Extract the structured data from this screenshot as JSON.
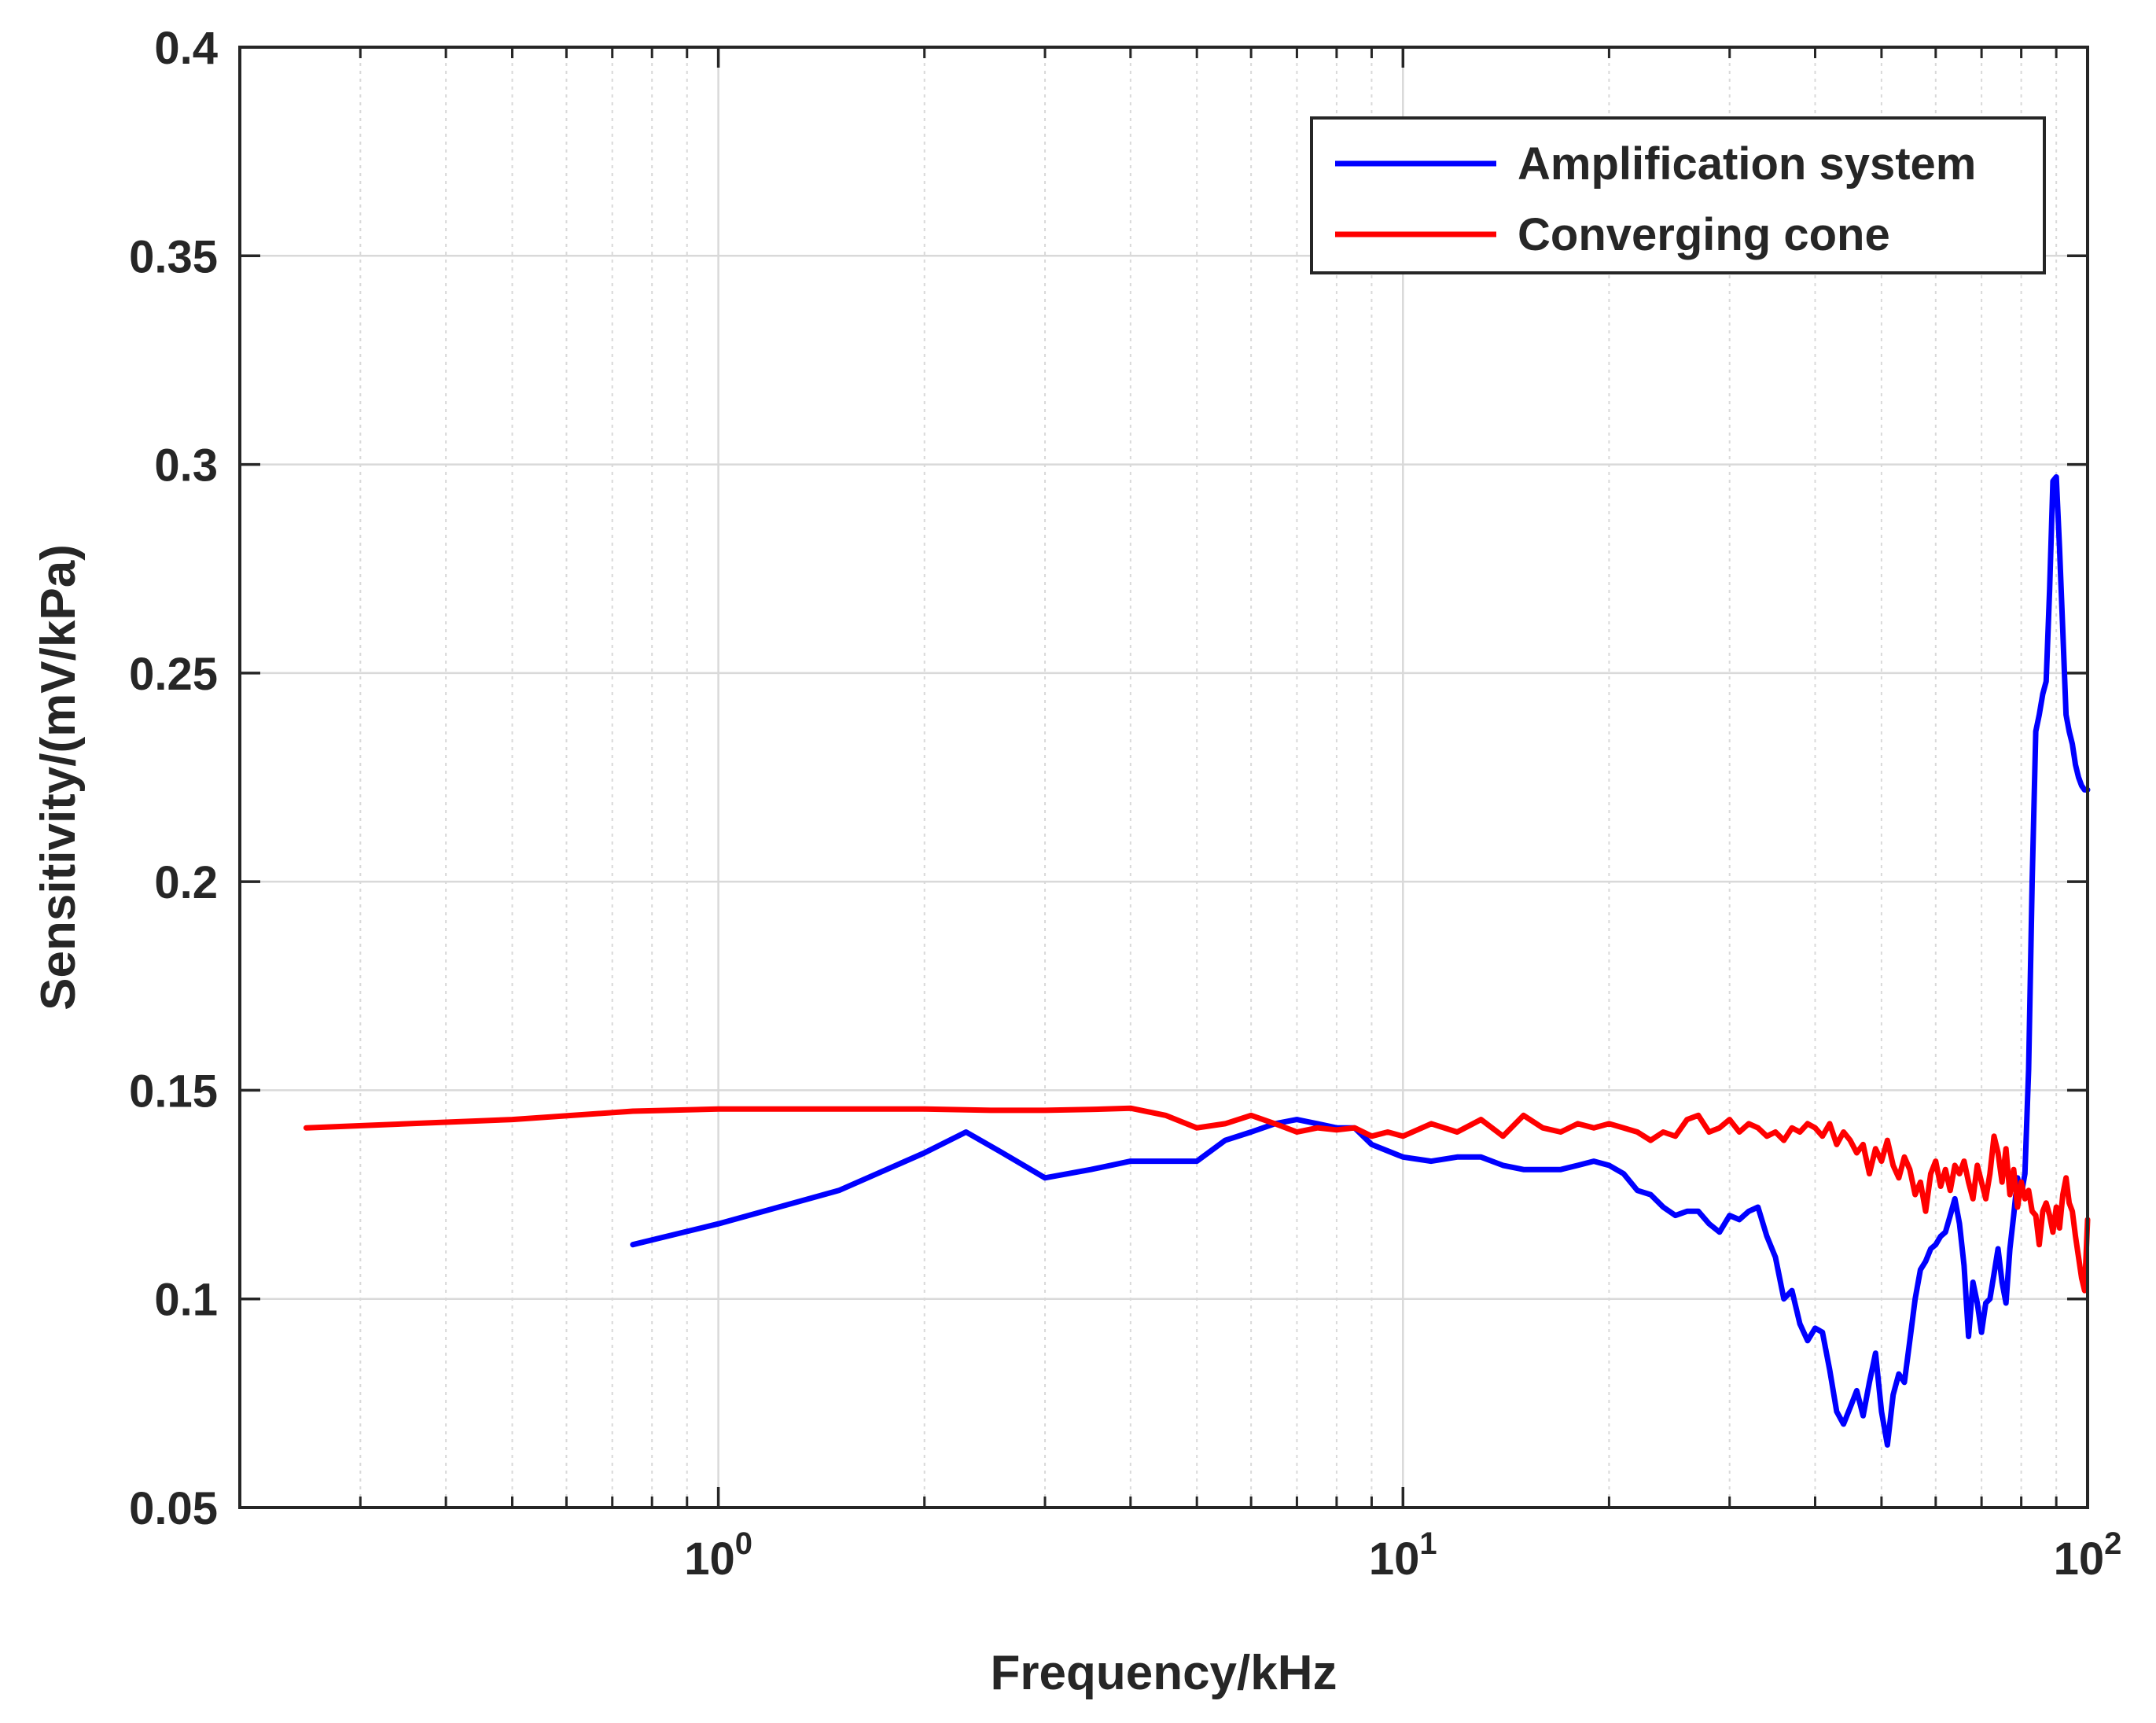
{
  "chart_data": {
    "type": "line",
    "title": "",
    "xlabel": "Frequency/kHz",
    "ylabel": "Sensitivity/(mV/kPa)",
    "x_scale": "log",
    "xlim": [
      0.2,
      100
    ],
    "ylim": [
      0.05,
      0.4
    ],
    "x_ticks": [
      {
        "value": 1,
        "base": "10",
        "exp": "0"
      },
      {
        "value": 10,
        "base": "10",
        "exp": "1"
      },
      {
        "value": 100,
        "base": "10",
        "exp": "2"
      }
    ],
    "y_ticks": [
      0.05,
      0.1,
      0.15,
      0.2,
      0.25,
      0.3,
      0.35,
      0.4
    ],
    "y_tick_labels": [
      "0.05",
      "0.1",
      "0.15",
      "0.2",
      "0.25",
      "0.3",
      "0.35",
      "0.4"
    ],
    "grid": true,
    "legend_position": "top-right",
    "series": [
      {
        "name": "Amplification system",
        "color": "#0000ff",
        "x": [
          0.75,
          1.0,
          1.5,
          2.0,
          2.3,
          2.6,
          3.0,
          3.5,
          4.0,
          4.5,
          5.0,
          5.5,
          6.0,
          6.5,
          7.0,
          7.5,
          8.0,
          8.5,
          9.0,
          10,
          11,
          12,
          13,
          14,
          15,
          16,
          17,
          18,
          19,
          20,
          21,
          22,
          23,
          24,
          25,
          26,
          27,
          28,
          29,
          30,
          31,
          32,
          33,
          34,
          35,
          36,
          37,
          38,
          39,
          40,
          41,
          42,
          43,
          44,
          45,
          46,
          47,
          48,
          49,
          50,
          51,
          52,
          53,
          54,
          55,
          56,
          57,
          58,
          59,
          60,
          61,
          62,
          63,
          64,
          65,
          66,
          67,
          68,
          69,
          70,
          71,
          72,
          73,
          74,
          75,
          76,
          77,
          78,
          79,
          80,
          81,
          82,
          83,
          84,
          85,
          86,
          87,
          88,
          89,
          90,
          91,
          92,
          93,
          94,
          95,
          96,
          97,
          98,
          99,
          100
        ],
        "y": [
          0.113,
          0.118,
          0.126,
          0.135,
          0.14,
          0.135,
          0.129,
          0.131,
          0.133,
          0.133,
          0.133,
          0.138,
          0.14,
          0.142,
          0.143,
          0.142,
          0.141,
          0.141,
          0.137,
          0.134,
          0.133,
          0.134,
          0.134,
          0.132,
          0.131,
          0.131,
          0.131,
          0.132,
          0.133,
          0.132,
          0.13,
          0.126,
          0.125,
          0.122,
          0.12,
          0.121,
          0.121,
          0.118,
          0.116,
          0.12,
          0.119,
          0.121,
          0.122,
          0.115,
          0.11,
          0.1,
          0.102,
          0.094,
          0.09,
          0.093,
          0.092,
          0.083,
          0.073,
          0.07,
          0.074,
          0.078,
          0.072,
          0.08,
          0.087,
          0.073,
          0.065,
          0.077,
          0.082,
          0.08,
          0.09,
          0.1,
          0.107,
          0.109,
          0.112,
          0.113,
          0.115,
          0.116,
          0.12,
          0.124,
          0.118,
          0.108,
          0.091,
          0.104,
          0.099,
          0.092,
          0.099,
          0.1,
          0.106,
          0.112,
          0.104,
          0.099,
          0.112,
          0.12,
          0.129,
          0.125,
          0.13,
          0.155,
          0.2,
          0.236,
          0.24,
          0.245,
          0.248,
          0.27,
          0.296,
          0.297,
          0.28,
          0.26,
          0.24,
          0.236,
          0.233,
          0.228,
          0.225,
          0.223,
          0.222,
          0.222
        ]
      },
      {
        "name": "Converging cone",
        "color": "#ff0000",
        "x": [
          0.25,
          0.5,
          0.75,
          1.0,
          1.5,
          2.0,
          2.5,
          3.0,
          3.5,
          4.0,
          4.5,
          5.0,
          5.5,
          6.0,
          6.5,
          7.0,
          7.5,
          8.0,
          8.5,
          9.0,
          9.5,
          10,
          11,
          12,
          13,
          14,
          15,
          16,
          17,
          18,
          19,
          20,
          21,
          22,
          23,
          24,
          25,
          26,
          27,
          28,
          29,
          30,
          31,
          32,
          33,
          34,
          35,
          36,
          37,
          38,
          39,
          40,
          41,
          42,
          43,
          44,
          45,
          46,
          47,
          48,
          49,
          50,
          51,
          52,
          53,
          54,
          55,
          56,
          57,
          58,
          59,
          60,
          61,
          62,
          63,
          64,
          65,
          66,
          67,
          68,
          69,
          70,
          71,
          72,
          73,
          74,
          75,
          76,
          77,
          78,
          79,
          80,
          81,
          82,
          83,
          84,
          85,
          86,
          87,
          88,
          89,
          90,
          91,
          92,
          93,
          94,
          95,
          96,
          97,
          98,
          99,
          100
        ],
        "y": [
          0.141,
          0.143,
          0.145,
          0.1455,
          0.1455,
          0.1455,
          0.1452,
          0.1452,
          0.1454,
          0.1457,
          0.144,
          0.141,
          0.142,
          0.144,
          0.142,
          0.14,
          0.141,
          0.1405,
          0.141,
          0.139,
          0.14,
          0.139,
          0.142,
          0.14,
          0.143,
          0.139,
          0.144,
          0.141,
          0.14,
          0.142,
          0.141,
          0.142,
          0.141,
          0.14,
          0.138,
          0.14,
          0.139,
          0.143,
          0.144,
          0.14,
          0.141,
          0.143,
          0.14,
          0.142,
          0.141,
          0.139,
          0.14,
          0.138,
          0.141,
          0.14,
          0.142,
          0.141,
          0.139,
          0.142,
          0.137,
          0.14,
          0.138,
          0.135,
          0.137,
          0.13,
          0.136,
          0.133,
          0.138,
          0.132,
          0.129,
          0.134,
          0.131,
          0.125,
          0.128,
          0.121,
          0.13,
          0.133,
          0.127,
          0.131,
          0.126,
          0.132,
          0.13,
          0.133,
          0.128,
          0.124,
          0.132,
          0.128,
          0.124,
          0.13,
          0.139,
          0.135,
          0.128,
          0.136,
          0.125,
          0.131,
          0.122,
          0.128,
          0.124,
          0.126,
          0.121,
          0.12,
          0.113,
          0.121,
          0.123,
          0.12,
          0.116,
          0.122,
          0.117,
          0.125,
          0.129,
          0.123,
          0.121,
          0.115,
          0.11,
          0.105,
          0.102,
          0.119
        ]
      }
    ]
  }
}
